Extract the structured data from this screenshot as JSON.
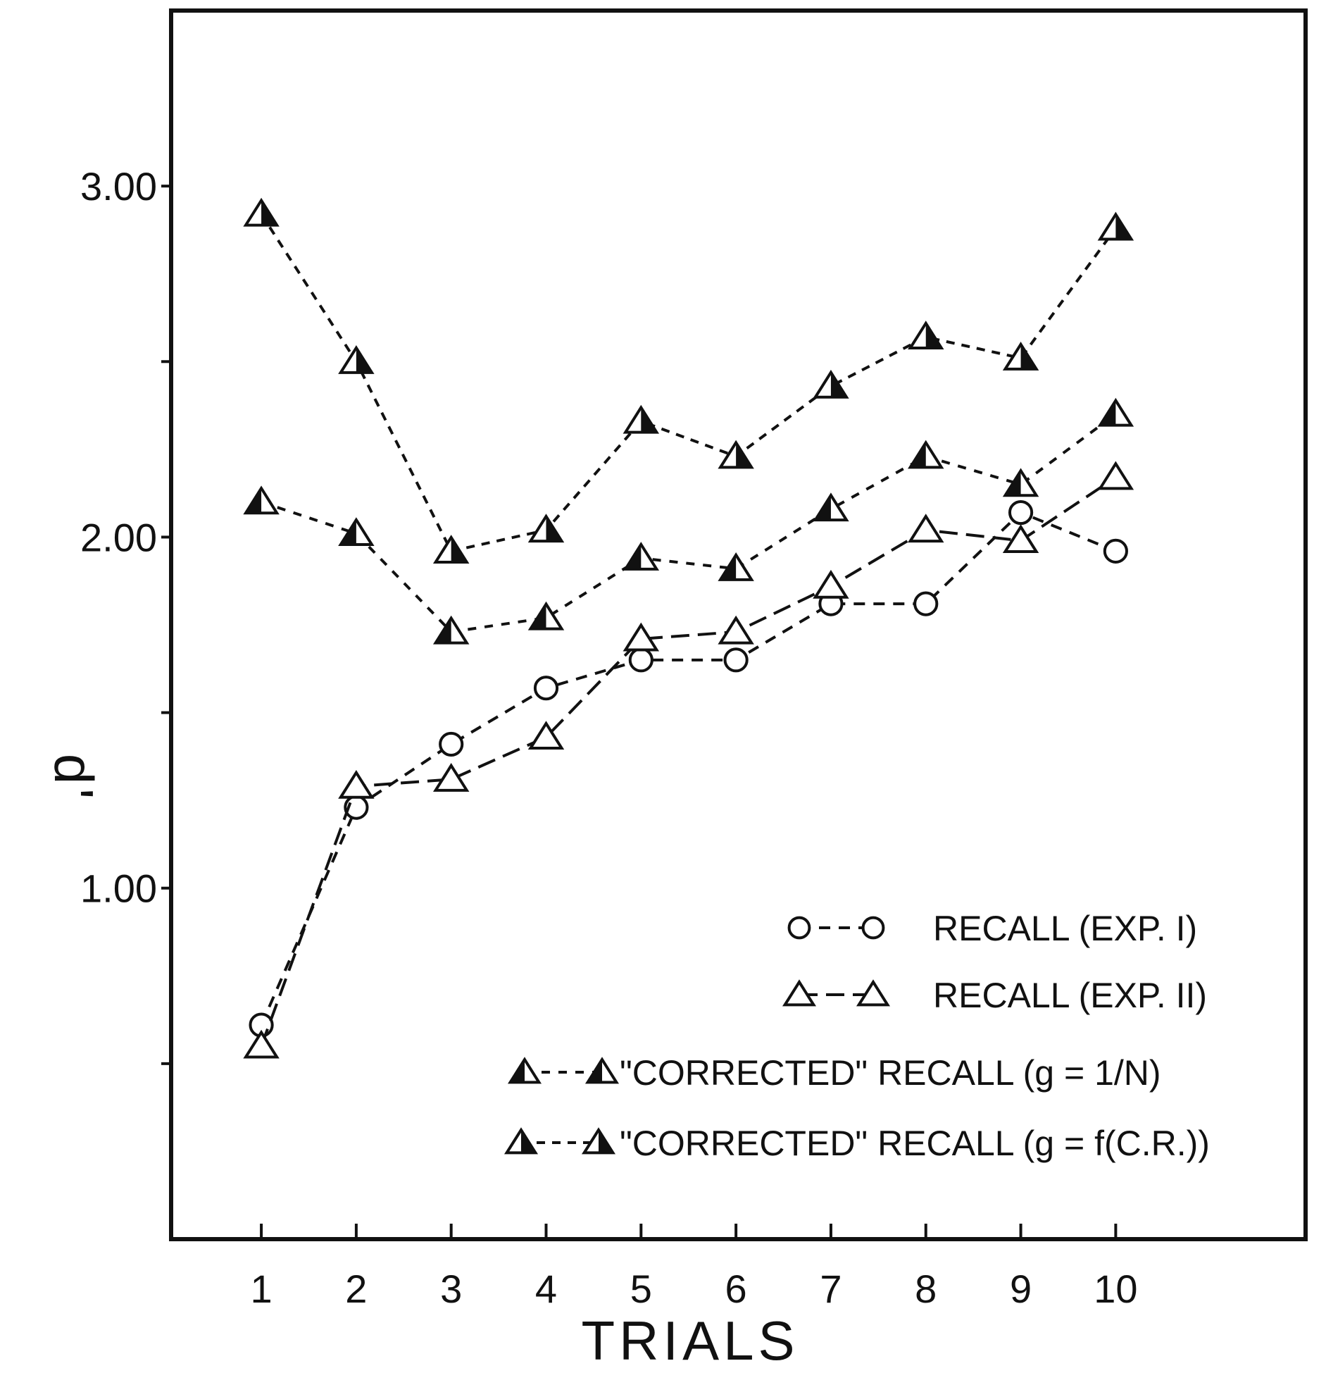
{
  "chart_data": {
    "type": "line",
    "title": "",
    "xlabel": "TRIALS",
    "ylabel": "d'",
    "x": [
      1,
      2,
      3,
      4,
      5,
      6,
      7,
      8,
      9,
      10
    ],
    "x_tick_labels": [
      "1",
      "2",
      "3",
      "4",
      "5",
      "6",
      "7",
      "8",
      "9",
      "10"
    ],
    "y_ticks": [
      0.5,
      1.0,
      1.5,
      2.0,
      2.5,
      3.0
    ],
    "y_tick_labels": [
      "",
      "1.00",
      "",
      "2.00",
      "",
      "3.00"
    ],
    "xlim": [
      0.05,
      12.0
    ],
    "ylim": [
      0.0,
      3.5
    ],
    "grid": false,
    "legend_position": "bottom-right",
    "series": [
      {
        "name": "RECALL (EXP. I)",
        "marker": "circle-open",
        "values": [
          0.61,
          1.23,
          1.41,
          1.57,
          1.65,
          1.65,
          1.81,
          1.81,
          2.07,
          1.96
        ]
      },
      {
        "name": "RECALL (EXP. II)",
        "marker": "triangle-open",
        "values": [
          0.55,
          1.29,
          1.31,
          1.43,
          1.71,
          1.73,
          1.86,
          2.02,
          1.99,
          2.17
        ]
      },
      {
        "name": "\"CORRECTED\" RECALL (g = 1/N)",
        "marker": "triangle-left-filled",
        "values": [
          2.1,
          2.01,
          1.73,
          1.77,
          1.94,
          1.91,
          2.08,
          2.23,
          2.15,
          2.35
        ]
      },
      {
        "name": "\"CORRECTED\" RECALL (g = f(C.R.))",
        "marker": "triangle-right-filled",
        "values": [
          2.92,
          2.5,
          1.96,
          2.02,
          2.33,
          2.23,
          2.43,
          2.57,
          2.51,
          2.88
        ]
      }
    ]
  }
}
